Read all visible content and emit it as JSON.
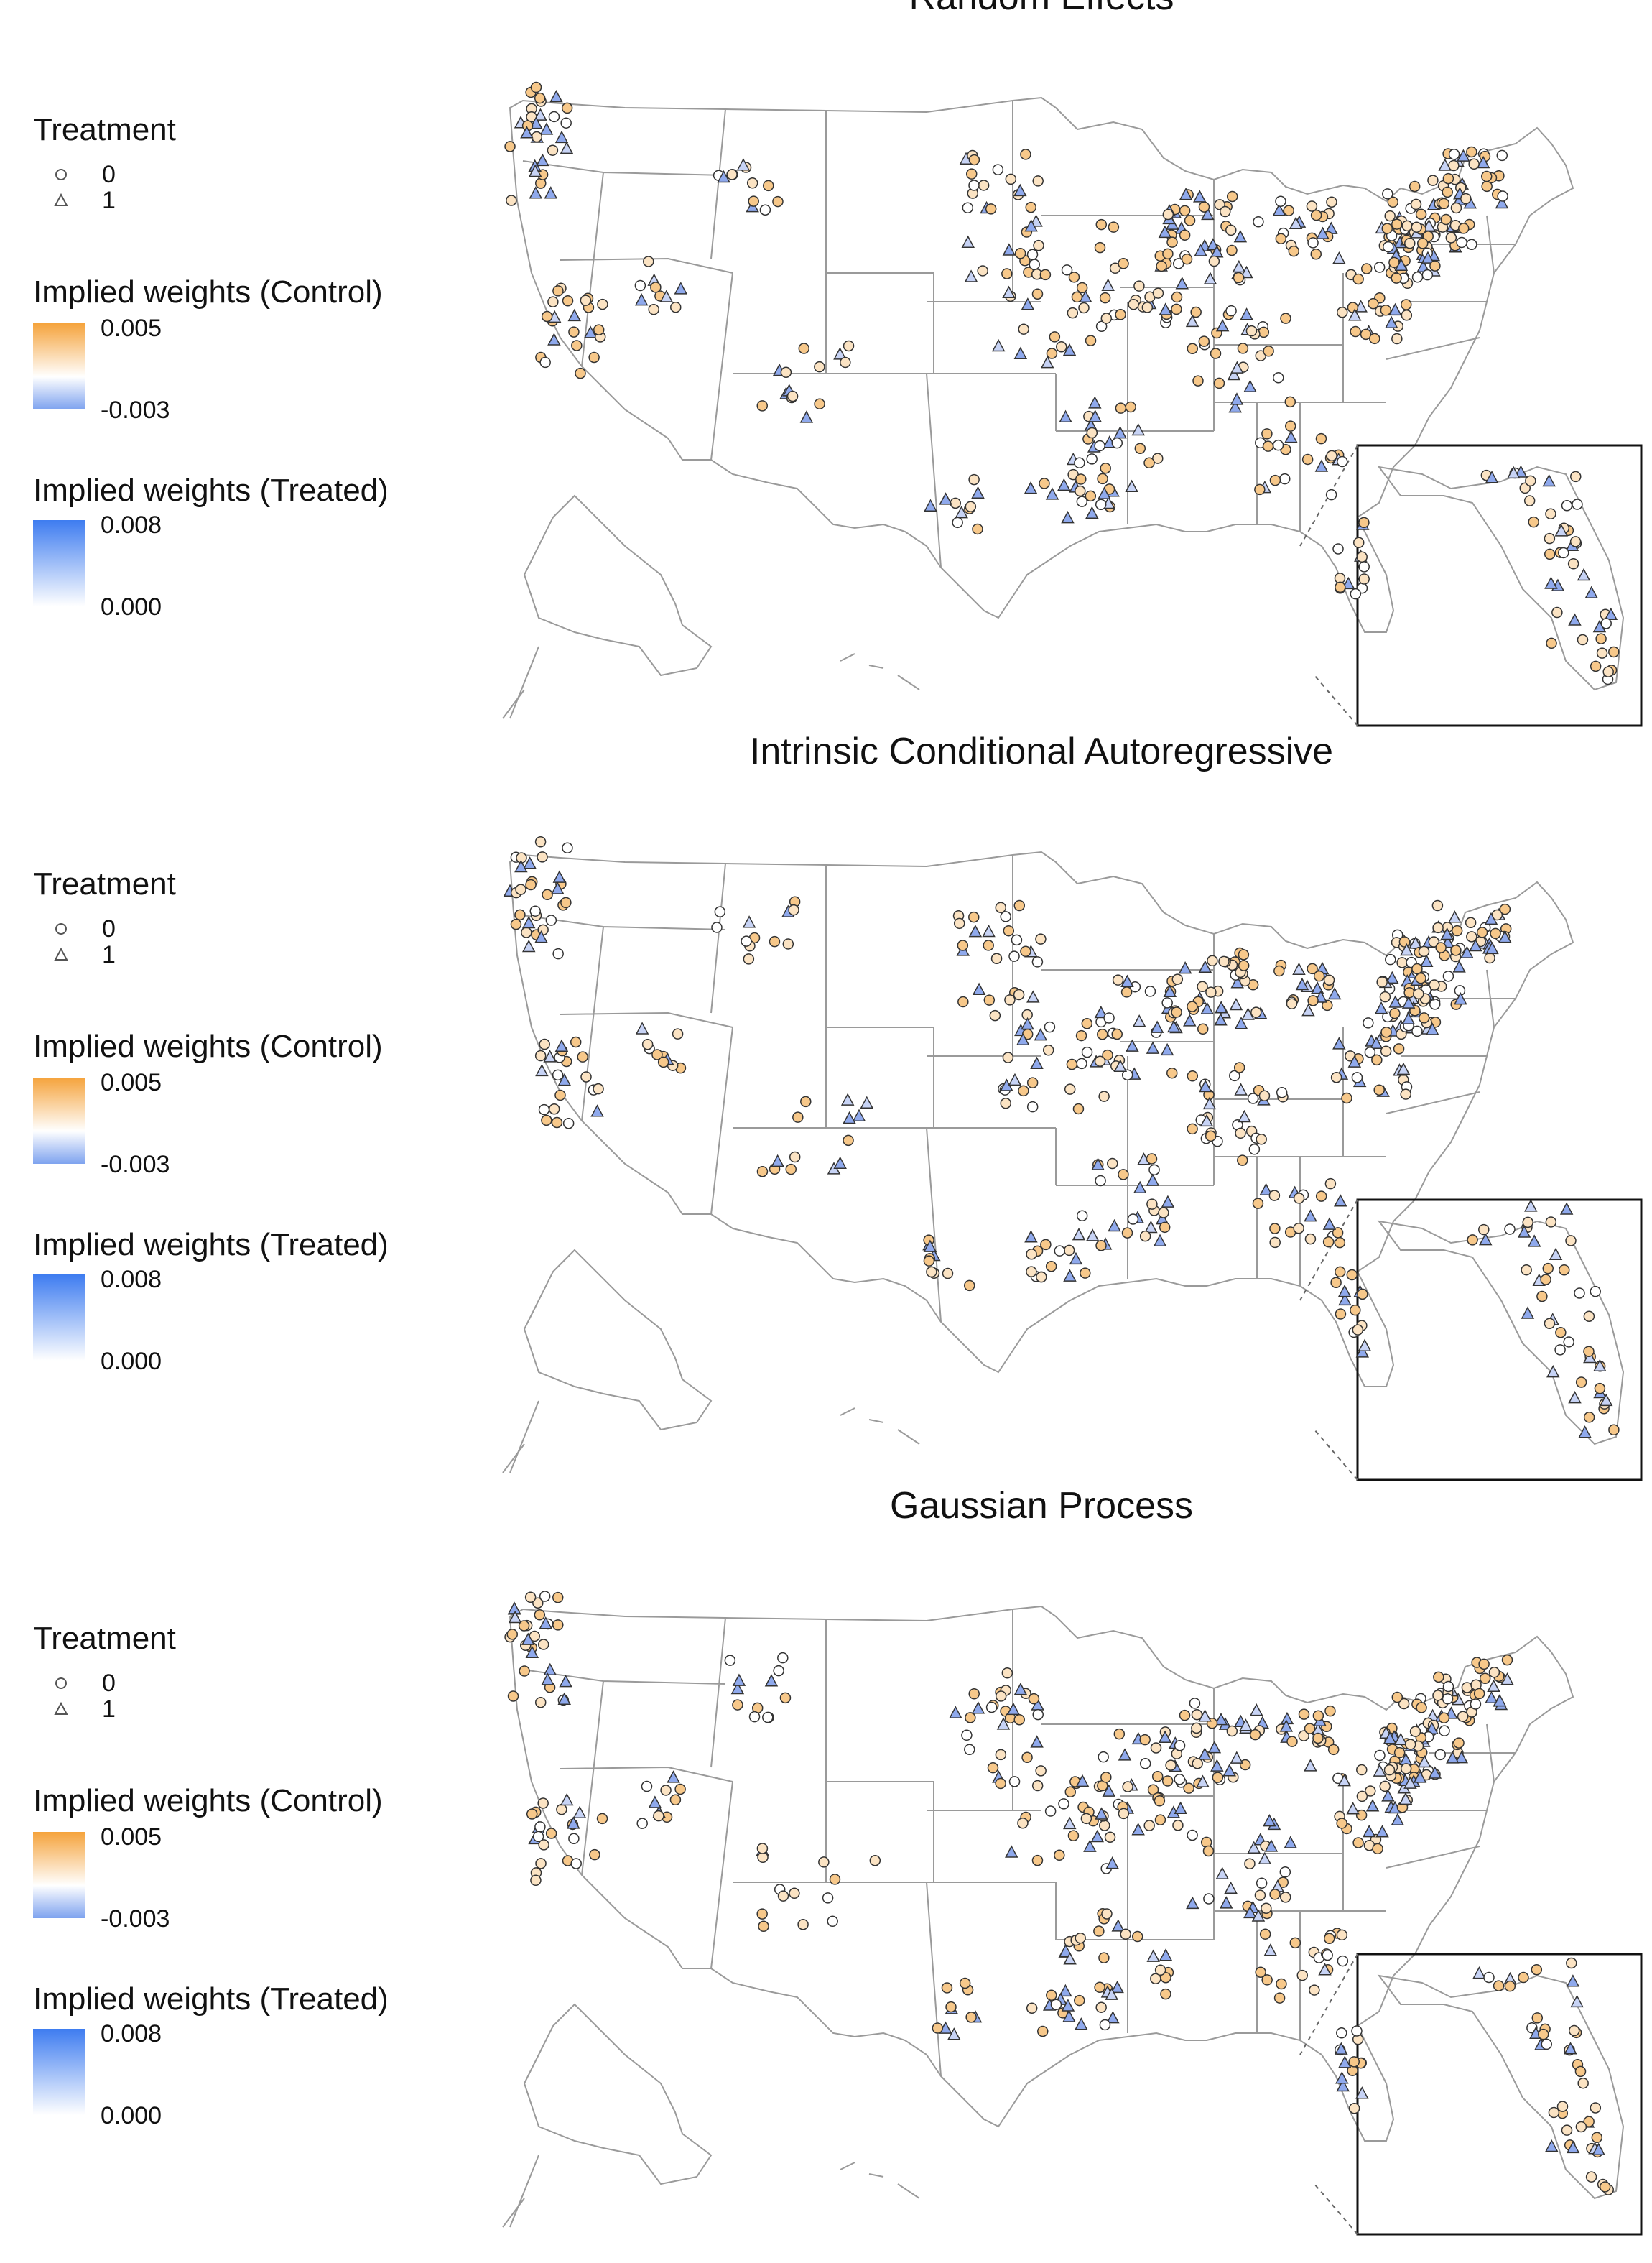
{
  "panels": [
    {
      "title": "Random Effects",
      "legend": {
        "treatment_title": "Treatment",
        "treatment_levels": [
          {
            "label": "0",
            "shape": "circle"
          },
          {
            "label": "1",
            "shape": "triangle"
          }
        ],
        "control_title": "Implied weights (Control)",
        "control_max": "0.005",
        "control_min": "-0.003",
        "treated_title": "Implied weights (Treated)",
        "treated_max": "0.008",
        "treated_min": "0.000"
      }
    },
    {
      "title": "Intrinsic Conditional Autoregressive",
      "legend": {
        "treatment_title": "Treatment",
        "treatment_levels": [
          {
            "label": "0",
            "shape": "circle"
          },
          {
            "label": "1",
            "shape": "triangle"
          }
        ],
        "control_title": "Implied weights (Control)",
        "control_max": "0.005",
        "control_min": "-0.003",
        "treated_title": "Implied weights (Treated)",
        "treated_max": "0.008",
        "treated_min": "0.000"
      }
    },
    {
      "title": "Gaussian Process",
      "legend": {
        "treatment_title": "Treatment",
        "treatment_levels": [
          {
            "label": "0",
            "shape": "circle"
          },
          {
            "label": "1",
            "shape": "triangle"
          }
        ],
        "control_title": "Implied weights (Control)",
        "control_max": "0.005",
        "control_min": "-0.003",
        "treated_title": "Implied weights (Treated)",
        "treated_max": "0.008",
        "treated_min": "0.000"
      }
    }
  ],
  "colors": {
    "control_high": "#f5a33c",
    "control_mid": "#ffffff",
    "control_low": "#7ea3ef",
    "treated_high": "#3e7cf0",
    "treated_low": "#ffffff",
    "boundary": "#9a9a9a",
    "point_stroke": "#333333"
  }
}
